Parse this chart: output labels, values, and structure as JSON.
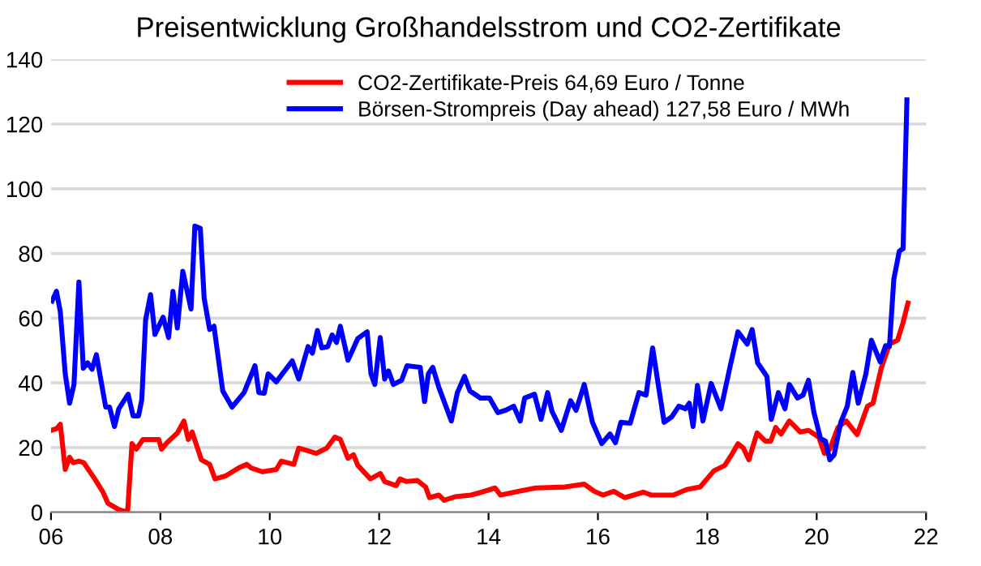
{
  "chart_data": {
    "type": "line",
    "title": "Preisentwicklung Großhandelsstrom und CO2-Zertifikate",
    "xlim": [
      2006,
      2022
    ],
    "xticks": [
      {
        "value": 2006,
        "label": "06"
      },
      {
        "value": 2008,
        "label": "08"
      },
      {
        "value": 2010,
        "label": "10"
      },
      {
        "value": 2012,
        "label": "12"
      },
      {
        "value": 2014,
        "label": "14"
      },
      {
        "value": 2016,
        "label": "16"
      },
      {
        "value": 2018,
        "label": "18"
      },
      {
        "value": 2020,
        "label": "20"
      },
      {
        "value": 2022,
        "label": "22"
      }
    ],
    "ylim": [
      0,
      140
    ],
    "yticks": [
      0,
      20,
      40,
      60,
      80,
      100,
      120,
      140
    ],
    "grid": "y",
    "legend": "top right",
    "marker": "none",
    "line_style": "solid",
    "series": [
      {
        "name": "CO2-Zertifikate-Preis 64,69 Euro / Tonne",
        "color": "#ff0000",
        "x": [
          2006.0,
          2006.1,
          2006.17,
          2006.26,
          2006.34,
          2006.41,
          2006.51,
          2006.6,
          2006.8,
          2006.95,
          2007.04,
          2007.24,
          2007.4,
          2007.48,
          2007.56,
          2007.68,
          2007.97,
          2008.02,
          2008.12,
          2008.31,
          2008.43,
          2008.51,
          2008.58,
          2008.75,
          2008.9,
          2009.0,
          2009.19,
          2009.43,
          2009.58,
          2009.66,
          2009.87,
          2010.12,
          2010.21,
          2010.44,
          2010.53,
          2010.66,
          2010.85,
          2011.04,
          2011.19,
          2011.29,
          2011.43,
          2011.53,
          2011.61,
          2011.84,
          2012.02,
          2012.1,
          2012.31,
          2012.38,
          2012.5,
          2012.7,
          2012.85,
          2012.92,
          2013.09,
          2013.19,
          2013.39,
          2013.68,
          2013.87,
          2014.12,
          2014.22,
          2014.56,
          2014.86,
          2015.4,
          2015.75,
          2015.93,
          2016.09,
          2016.29,
          2016.49,
          2016.83,
          2016.98,
          2017.38,
          2017.62,
          2017.87,
          2018.12,
          2018.32,
          2018.46,
          2018.56,
          2018.66,
          2018.76,
          2018.91,
          2019.06,
          2019.16,
          2019.25,
          2019.35,
          2019.5,
          2019.7,
          2019.85,
          2020.04,
          2020.14,
          2020.24,
          2020.39,
          2020.54,
          2020.74,
          2020.93,
          2021.03,
          2021.18,
          2021.33,
          2021.48,
          2021.58,
          2021.67
        ],
        "values": [
          25.3,
          25.8,
          27.2,
          13.2,
          17,
          15.3,
          15.8,
          15.3,
          10.3,
          6.2,
          2.8,
          0.8,
          0,
          21.2,
          19.5,
          22.5,
          22.5,
          19.5,
          21.5,
          24.5,
          28.2,
          22.5,
          24.8,
          16.2,
          14.8,
          10.3,
          11.2,
          13.7,
          14.8,
          13.7,
          12.5,
          13.2,
          15.8,
          14.8,
          19.8,
          19.2,
          18.2,
          19.8,
          23.2,
          22.5,
          16.7,
          17.8,
          14.5,
          10.3,
          12,
          9.5,
          8.2,
          10.3,
          9.5,
          9.8,
          7.8,
          4.5,
          5.3,
          3.7,
          4.8,
          5.3,
          6.2,
          7.5,
          5.3,
          6.5,
          7.5,
          7.8,
          8.7,
          6.5,
          5.3,
          6.5,
          4.5,
          6.2,
          5.3,
          5.3,
          7,
          7.8,
          12.8,
          14.5,
          18.2,
          21.2,
          19.8,
          16.2,
          24.5,
          22,
          22,
          26.2,
          24.2,
          28.2,
          24.8,
          25.3,
          23.2,
          18.2,
          19.5,
          26.2,
          28.2,
          24,
          32.8,
          33.7,
          44.5,
          52,
          53.2,
          58.7,
          64.7
        ]
      },
      {
        "name": "Börsen-Strompreis (Day ahead) 127,58 Euro / MWh",
        "color": "#0000ff",
        "x": [
          2006.02,
          2006.1,
          2006.17,
          2006.26,
          2006.34,
          2006.42,
          2006.51,
          2006.59,
          2006.67,
          2006.75,
          2006.83,
          2007.0,
          2007.07,
          2007.16,
          2007.24,
          2007.41,
          2007.5,
          2007.6,
          2007.66,
          2007.73,
          2007.82,
          2007.9,
          2008.05,
          2008.15,
          2008.23,
          2008.31,
          2008.41,
          2008.56,
          2008.63,
          2008.73,
          2008.8,
          2008.9,
          2008.98,
          2009.14,
          2009.31,
          2009.53,
          2009.73,
          2009.8,
          2009.9,
          2009.97,
          2010.12,
          2010.41,
          2010.53,
          2010.7,
          2010.78,
          2010.87,
          2010.95,
          2011.06,
          2011.14,
          2011.22,
          2011.29,
          2011.43,
          2011.61,
          2011.78,
          2011.85,
          2011.92,
          2012.02,
          2012.1,
          2012.17,
          2012.26,
          2012.41,
          2012.51,
          2012.75,
          2012.83,
          2012.9,
          2012.98,
          2013.09,
          2013.32,
          2013.43,
          2013.56,
          2013.66,
          2013.85,
          2014.02,
          2014.17,
          2014.31,
          2014.46,
          2014.58,
          2014.66,
          2014.84,
          2014.96,
          2015.08,
          2015.16,
          2015.33,
          2015.5,
          2015.6,
          2015.75,
          2015.9,
          2016.07,
          2016.22,
          2016.32,
          2016.42,
          2016.59,
          2016.75,
          2016.88,
          2017.0,
          2017.21,
          2017.35,
          2017.48,
          2017.6,
          2017.67,
          2017.74,
          2017.82,
          2017.92,
          2018.07,
          2018.25,
          2018.41,
          2018.56,
          2018.73,
          2018.82,
          2018.92,
          2019.09,
          2019.17,
          2019.3,
          2019.42,
          2019.5,
          2019.65,
          2019.75,
          2019.85,
          2019.95,
          2020.07,
          2020.16,
          2020.24,
          2020.32,
          2020.44,
          2020.56,
          2020.66,
          2020.76,
          2020.9,
          2021.0,
          2021.16,
          2021.26,
          2021.33,
          2021.41,
          2021.51,
          2021.58,
          2021.65
        ],
        "values": [
          65.3,
          68.3,
          62,
          42.8,
          33.7,
          39.5,
          71.2,
          44.5,
          46.2,
          44.2,
          48.7,
          32.5,
          32.5,
          26.5,
          32,
          36.5,
          29.8,
          29.8,
          34.8,
          59.5,
          67.3,
          55,
          60.3,
          54,
          68.3,
          57,
          74.5,
          62.8,
          88.5,
          87.8,
          66.2,
          56.5,
          57.5,
          37.5,
          32.5,
          37,
          45.3,
          37,
          36.8,
          42.8,
          40.3,
          46.8,
          41.2,
          51.2,
          49.2,
          56.2,
          50.8,
          51.2,
          54.8,
          52.5,
          57.5,
          47,
          53.7,
          55.8,
          42.8,
          39.5,
          54,
          41.2,
          43.7,
          39.5,
          40.8,
          45.3,
          44.8,
          34.2,
          42.8,
          44.8,
          38.7,
          28.2,
          37,
          42,
          37.5,
          35.3,
          35.3,
          30.8,
          31.5,
          32.8,
          28.2,
          35.3,
          36.5,
          28.7,
          37,
          31.2,
          25.3,
          34.5,
          31.5,
          39.5,
          27.8,
          21.2,
          24.2,
          21.5,
          27.8,
          27.5,
          37,
          36.2,
          50.8,
          27.8,
          29.5,
          32.8,
          32,
          33.7,
          26.5,
          39.2,
          28.2,
          39.8,
          32,
          44.5,
          55.8,
          52,
          56.5,
          46.2,
          42,
          28.7,
          37,
          32,
          39.5,
          35.3,
          36.2,
          40.8,
          30.8,
          22.8,
          22,
          16.2,
          17.8,
          27.8,
          32.8,
          43.2,
          33.7,
          42.8,
          53.2,
          46.5,
          51.5,
          51.2,
          72,
          80.7,
          81.5,
          127.5
        ]
      }
    ]
  }
}
